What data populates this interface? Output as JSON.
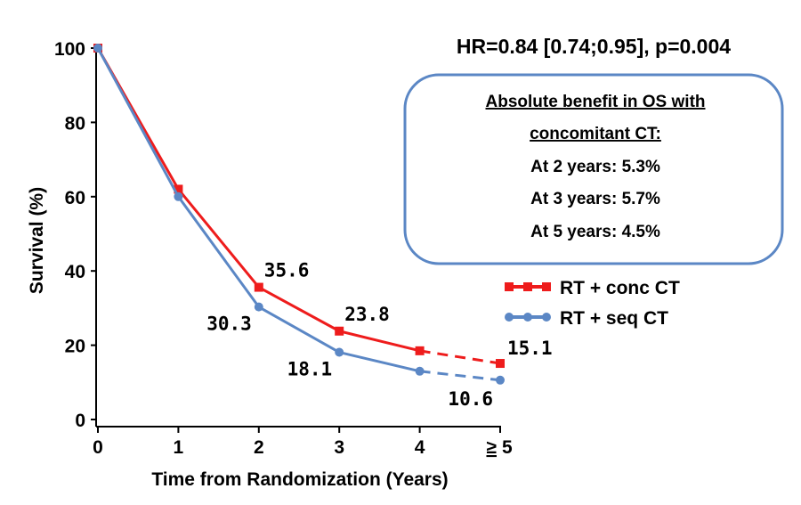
{
  "chart_data": {
    "type": "line",
    "xlabel": "Time from Randomization (Years)",
    "ylabel": "Survival (%)",
    "categories": [
      "0",
      "1",
      "2",
      "3",
      "4",
      "5"
    ],
    "ge_symbol": "≥",
    "ylim": [
      0,
      100
    ],
    "yticks": [
      "0",
      "20",
      "40",
      "60",
      "80",
      "100"
    ],
    "grid": false,
    "legend_position": "right",
    "series": [
      {
        "name": "RT + conc CT",
        "color": "#ee1c1c",
        "marker": "square",
        "x": [
          0,
          1,
          2,
          3,
          4,
          5
        ],
        "values": [
          100,
          62,
          35.6,
          23.8,
          18.5,
          15.1
        ],
        "dashed_from_index": 4,
        "labels": [
          null,
          null,
          "35.6",
          "23.8",
          null,
          "15.1"
        ]
      },
      {
        "name": "RT + seq CT",
        "color": "#5b87c5",
        "marker": "circle",
        "x": [
          0,
          1,
          2,
          3,
          4,
          5
        ],
        "values": [
          100,
          60,
          30.3,
          18.1,
          13,
          10.6
        ],
        "dashed_from_index": 4,
        "labels": [
          null,
          null,
          "30.3",
          "18.1",
          null,
          "10.6"
        ]
      }
    ],
    "annotation_hr": "HR=0.84 [0.74;0.95], p=0.004",
    "benefit_box": {
      "title_line1": "Absolute benefit in OS with",
      "title_line2": "concomitant CT:",
      "lines": [
        {
          "text": "At 2 years: 5.3%",
          "color": "#000000"
        },
        {
          "text": "At 3 years: 5.7%",
          "color": "#000000"
        },
        {
          "text": "At 5 years: 4.5%",
          "color": "#ee1c1c"
        }
      ],
      "border_color": "#5b87c5"
    }
  }
}
